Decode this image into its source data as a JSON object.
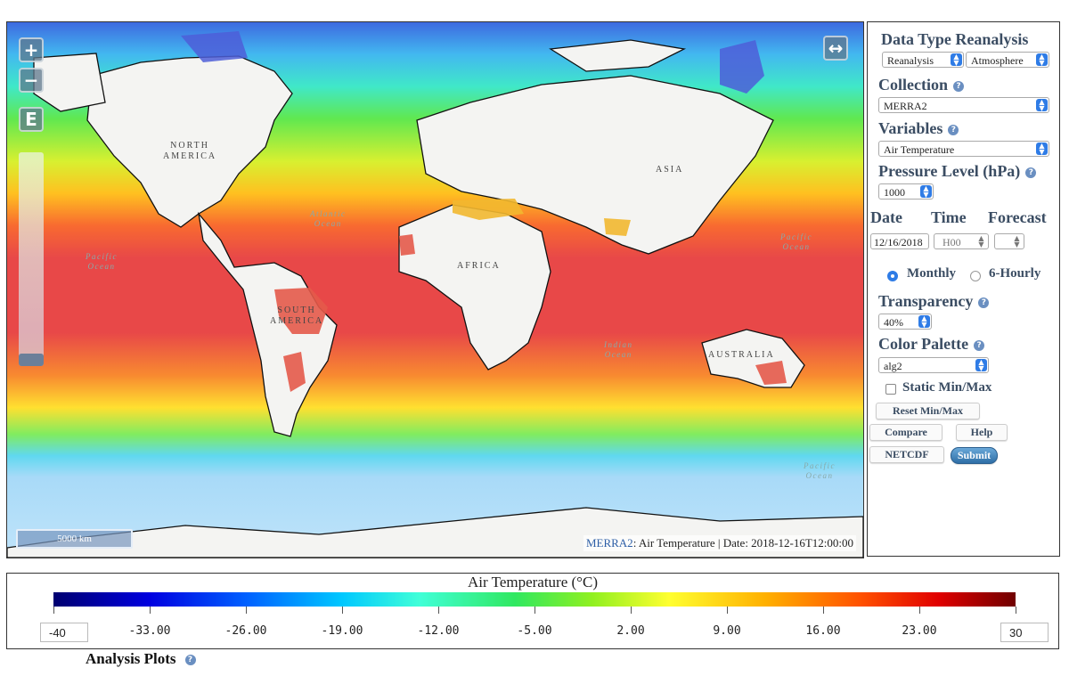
{
  "map": {
    "zoom_in": "+",
    "zoom_out": "−",
    "extent_button": "E",
    "fullscreen_icon": "↔",
    "scale_label": "5000 km",
    "attribution": {
      "link": "MERRA2",
      "text": ": Air Temperature | Date: 2018-12-16T12:00:00"
    },
    "labels": {
      "north_america": "NORTH\nAMERICA",
      "south_america": "SOUTH\nAMERICA",
      "africa": "AFRICA",
      "asia": "ASIA",
      "australia": "AUSTRALIA",
      "atlantic": "Atlantic\nOcean",
      "pacific_w": "Pacific\nOcean",
      "pacific_e": "Pacific\nOcean",
      "pacific_s": "Pacific\nOcean",
      "indian": "Indian\nOcean"
    }
  },
  "panel": {
    "data_type_label": "Data Type Reanalysis",
    "data_type_select": "Reanalysis",
    "domain_select": "Atmosphere",
    "collection_label": "Collection",
    "collection_value": "MERRA2",
    "variables_label": "Variables",
    "variable_value": "Air Temperature",
    "pressure_label": "Pressure Level (hPa)",
    "pressure_value": "1000",
    "date_label": "Date",
    "time_label": "Time",
    "forecast_label": "Forecast",
    "date_value": "12/16/2018",
    "time_value": "H00",
    "forecast_value": "",
    "monthly_label": "Monthly",
    "hourly_label": "6-Hourly",
    "transparency_label": "Transparency",
    "transparency_value": "40%",
    "palette_label": "Color Palette",
    "palette_value": "alg2",
    "static_label": "Static Min/Max",
    "reset_button": "Reset Min/Max",
    "compare_button": "Compare",
    "help_button": "Help",
    "netcdf_button": "NETCDF",
    "submit_button": "Submit",
    "help_glyph": "?"
  },
  "legend": {
    "title": "Air Temperature (°C)",
    "min_value": "-40",
    "max_value": "30",
    "ticks": [
      "-33.00",
      "-26.00",
      "-19.00",
      "-12.00",
      "-5.00",
      "2.00",
      "9.00",
      "16.00",
      "23.00"
    ],
    "colors": [
      "#000070",
      "#0000e0",
      "#0060ff",
      "#00c8ff",
      "#40ffd8",
      "#30e860",
      "#90f020",
      "#ffff30",
      "#ffb000",
      "#ff5000",
      "#e00000",
      "#700000"
    ]
  },
  "analysis_label": "Analysis Plots"
}
